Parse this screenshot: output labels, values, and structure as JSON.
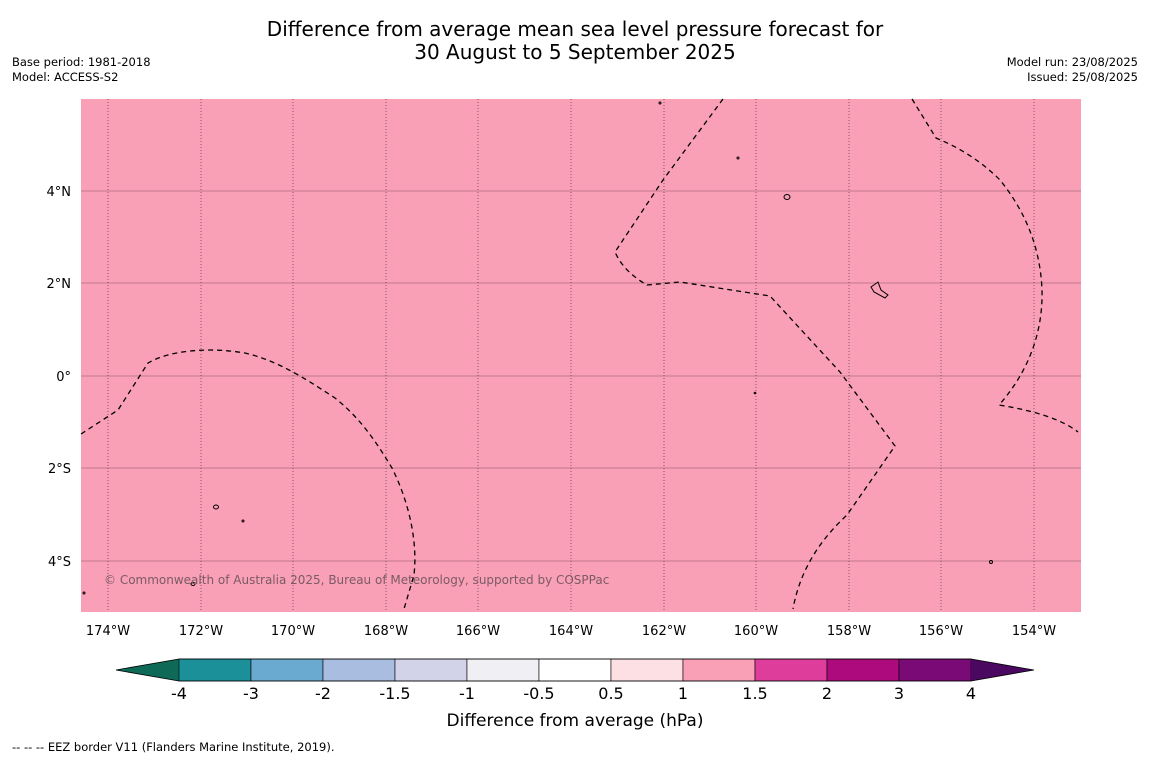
{
  "title_line1": "Difference from average mean sea level pressure forecast for",
  "title_line2": "30 August to 5 September 2025",
  "base_period": "Base period: 1981-2018",
  "model": "Model: ACCESS-S2",
  "model_run": "Model run: 23/08/2025",
  "issued": "Issued: 25/08/2025",
  "map": {
    "fill_color": "#f9a0b7",
    "lat_labels": [
      "4°N",
      "2°N",
      "0°",
      "2°S",
      "4°S"
    ],
    "lon_labels": [
      "174°W",
      "172°W",
      "170°W",
      "168°W",
      "166°W",
      "164°W",
      "162°W",
      "160°W",
      "158°W",
      "156°W",
      "154°W"
    ],
    "copyright": "© Commonwealth of Australia 2025, Bureau of Meteorology, supported by COSPPac"
  },
  "colorbar": {
    "title": "Difference from average (hPa)",
    "tick_labels": [
      "-4",
      "-3",
      "-2",
      "-1.5",
      "-1",
      "-0.5",
      "0.5",
      "1",
      "1.5",
      "2",
      "3",
      "4"
    ],
    "colors": [
      "#0e6a57",
      "#1b9099",
      "#6aaad0",
      "#a8bddf",
      "#d2d2e8",
      "#f0eff3",
      "#ffffff",
      "#fde0e4",
      "#f9a0b7",
      "#de3d9b",
      "#ad0a7d",
      "#7a0a76",
      "#4a0860"
    ]
  },
  "footer": "--  --  -- EEZ border V11 (Flanders Marine Institute, 2019)."
}
